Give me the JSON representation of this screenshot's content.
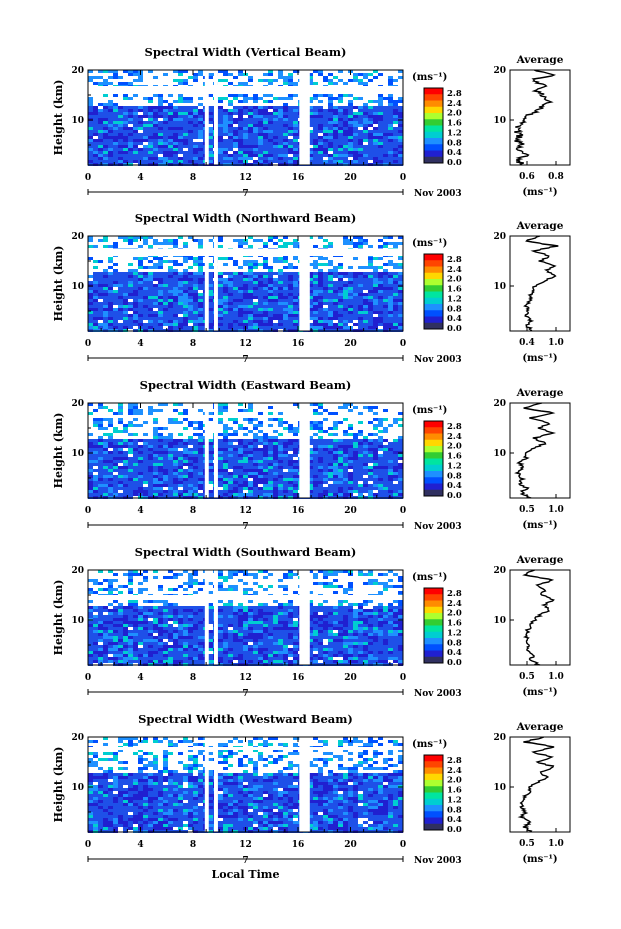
{
  "chart_data": [
    {
      "type": "heatmap",
      "title": "Spectral Width (Vertical Beam)",
      "ylabel": "Height (km)",
      "x_ticks": [
        "0",
        "4",
        "8",
        "12",
        "16",
        "20",
        "0"
      ],
      "y_ticks": [
        "10",
        "20"
      ],
      "xlim": [
        0,
        24
      ],
      "ylim": [
        1,
        20
      ],
      "date_label": "7",
      "month_label": "Nov 2003",
      "data_gaps_hours": [
        [
          8.9,
          9.2
        ],
        [
          9.6,
          9.9
        ],
        [
          16.1,
          16.9
        ]
      ],
      "upper_gap_km": [
        15.2,
        16.8
      ],
      "average_profile": {
        "title": "Average",
        "xlabel": "(ms⁻¹)",
        "x_ticks": [
          "0.6",
          "0.8"
        ],
        "y_ticks": [
          "10",
          "20"
        ],
        "xlim": [
          0.45,
          0.92
        ],
        "heights_km": [
          1,
          2,
          3,
          4,
          5,
          6,
          7,
          8,
          9,
          10,
          11,
          12,
          13,
          14,
          15,
          16,
          17,
          18,
          19,
          20
        ],
        "values": [
          0.56,
          0.5,
          0.6,
          0.49,
          0.55,
          0.5,
          0.53,
          0.5,
          0.52,
          0.55,
          0.6,
          0.68,
          0.72,
          0.76,
          0.7,
          0.66,
          0.72,
          0.62,
          0.78,
          0.64
        ]
      }
    },
    {
      "type": "heatmap",
      "title": "Spectral Width (Northward Beam)",
      "ylabel": "Height (km)",
      "x_ticks": [
        "0",
        "4",
        "8",
        "12",
        "16",
        "20",
        "0"
      ],
      "y_ticks": [
        "10",
        "20"
      ],
      "xlim": [
        0,
        24
      ],
      "ylim": [
        1,
        20
      ],
      "date_label": "7",
      "month_label": "Nov 2003",
      "data_gaps_hours": [
        [
          8.9,
          9.2
        ],
        [
          9.6,
          9.9
        ],
        [
          16.1,
          16.9
        ]
      ],
      "upper_gap_km": [
        16.0,
        17.5
      ],
      "average_profile": {
        "title": "Average",
        "xlabel": "(ms⁻¹)",
        "x_ticks": [
          "0.4",
          "1.0"
        ],
        "y_ticks": [
          "10",
          "20"
        ],
        "xlim": [
          0.25,
          1.15
        ],
        "heights_km": [
          1,
          2,
          3,
          4,
          5,
          6,
          7,
          8,
          9,
          10,
          11,
          12,
          13,
          14,
          15,
          16,
          17,
          18,
          19,
          20
        ],
        "values": [
          0.6,
          0.5,
          0.55,
          0.5,
          0.52,
          0.5,
          0.55,
          0.55,
          0.6,
          0.62,
          0.75,
          0.95,
          0.8,
          0.9,
          0.7,
          0.85,
          0.6,
          0.95,
          0.5,
          0.7
        ]
      }
    },
    {
      "type": "heatmap",
      "title": "Spectral Width (Eastward Beam)",
      "ylabel": "Height (km)",
      "x_ticks": [
        "0",
        "4",
        "8",
        "12",
        "16",
        "20",
        "0"
      ],
      "y_ticks": [
        "10",
        "20"
      ],
      "xlim": [
        0,
        24
      ],
      "ylim": [
        1,
        20
      ],
      "date_label": "7",
      "month_label": "Nov 2003",
      "data_gaps_hours": [
        [
          8.9,
          9.2
        ],
        [
          9.6,
          9.9
        ],
        [
          16.1,
          16.9
        ]
      ],
      "upper_gap_km": [
        17.0,
        17.6
      ],
      "average_profile": {
        "title": "Average",
        "xlabel": "(ms⁻¹)",
        "x_ticks": [
          "0.5",
          "1.0"
        ],
        "y_ticks": [
          "10",
          "20"
        ],
        "xlim": [
          0.4,
          1.15
        ],
        "heights_km": [
          1,
          2,
          3,
          4,
          5,
          6,
          7,
          8,
          9,
          10,
          11,
          12,
          13,
          14,
          15,
          16,
          17,
          18,
          19,
          20
        ],
        "values": [
          0.65,
          0.55,
          0.6,
          0.52,
          0.55,
          0.5,
          0.55,
          0.52,
          0.6,
          0.62,
          0.7,
          0.85,
          0.7,
          0.95,
          0.75,
          0.9,
          0.65,
          0.95,
          0.55,
          0.8
        ]
      }
    },
    {
      "type": "heatmap",
      "title": "Spectral Width (Southward Beam)",
      "ylabel": "Height (km)",
      "x_ticks": [
        "0",
        "4",
        "8",
        "12",
        "16",
        "20",
        "0"
      ],
      "y_ticks": [
        "10",
        "20"
      ],
      "xlim": [
        0,
        24
      ],
      "ylim": [
        1,
        20
      ],
      "date_label": "7",
      "month_label": "Nov 2003",
      "data_gaps_hours": [
        [
          8.9,
          9.2
        ],
        [
          9.6,
          9.9
        ],
        [
          16.1,
          16.9
        ]
      ],
      "upper_gap_km": [
        14.0,
        15.0
      ],
      "average_profile": {
        "title": "Average",
        "xlabel": "(ms⁻¹)",
        "x_ticks": [
          "0.5",
          "1.0"
        ],
        "y_ticks": [
          "10",
          "20"
        ],
        "xlim": [
          0.3,
          1.15
        ],
        "heights_km": [
          1,
          2,
          3,
          4,
          5,
          6,
          7,
          8,
          9,
          10,
          11,
          12,
          13,
          14,
          15,
          16,
          17,
          18,
          19,
          20
        ],
        "values": [
          0.7,
          0.6,
          0.62,
          0.55,
          0.55,
          0.52,
          0.55,
          0.55,
          0.6,
          0.65,
          0.72,
          0.85,
          0.8,
          0.9,
          0.75,
          0.8,
          0.7,
          0.9,
          0.5,
          0.65
        ]
      }
    },
    {
      "type": "heatmap",
      "title": "Spectral Width (Westward Beam)",
      "ylabel": "Height (km)",
      "x_ticks": [
        "0",
        "4",
        "8",
        "12",
        "16",
        "20",
        "0"
      ],
      "y_ticks": [
        "10",
        "20"
      ],
      "xlim": [
        0,
        24
      ],
      "ylim": [
        1,
        20
      ],
      "date_label": "7",
      "month_label": "Nov 2003",
      "data_gaps_hours": [
        [
          8.9,
          9.2
        ],
        [
          9.6,
          9.9
        ],
        [
          16.1,
          16.9
        ]
      ],
      "upper_gap_km": [
        17.4,
        18.0
      ],
      "xlabel": "Local Time",
      "average_profile": {
        "title": "Average",
        "xlabel": "(ms⁻¹)",
        "x_ticks": [
          "0.5",
          "1.0"
        ],
        "y_ticks": [
          "10",
          "20"
        ],
        "xlim": [
          0.35,
          1.15
        ],
        "heights_km": [
          1,
          2,
          3,
          4,
          5,
          6,
          7,
          8,
          9,
          10,
          11,
          12,
          13,
          14,
          15,
          16,
          17,
          18,
          19,
          20
        ],
        "values": [
          0.62,
          0.55,
          0.6,
          0.5,
          0.55,
          0.5,
          0.52,
          0.55,
          0.6,
          0.62,
          0.72,
          0.85,
          0.75,
          0.95,
          0.7,
          0.9,
          0.65,
          0.95,
          0.55,
          0.8
        ]
      }
    }
  ],
  "colorbar": {
    "unit": "(ms⁻¹)",
    "ticks": [
      "2.8",
      "2.4",
      "2.0",
      "1.6",
      "1.2",
      "0.8",
      "0.4",
      "0.0"
    ],
    "colors": [
      "#FF0000",
      "#FF4500",
      "#FF8C00",
      "#FFD700",
      "#ADFF2F",
      "#32CD32",
      "#00E5A0",
      "#00CED1",
      "#1E90FF",
      "#0050FF",
      "#2020D0",
      "#303060"
    ]
  }
}
